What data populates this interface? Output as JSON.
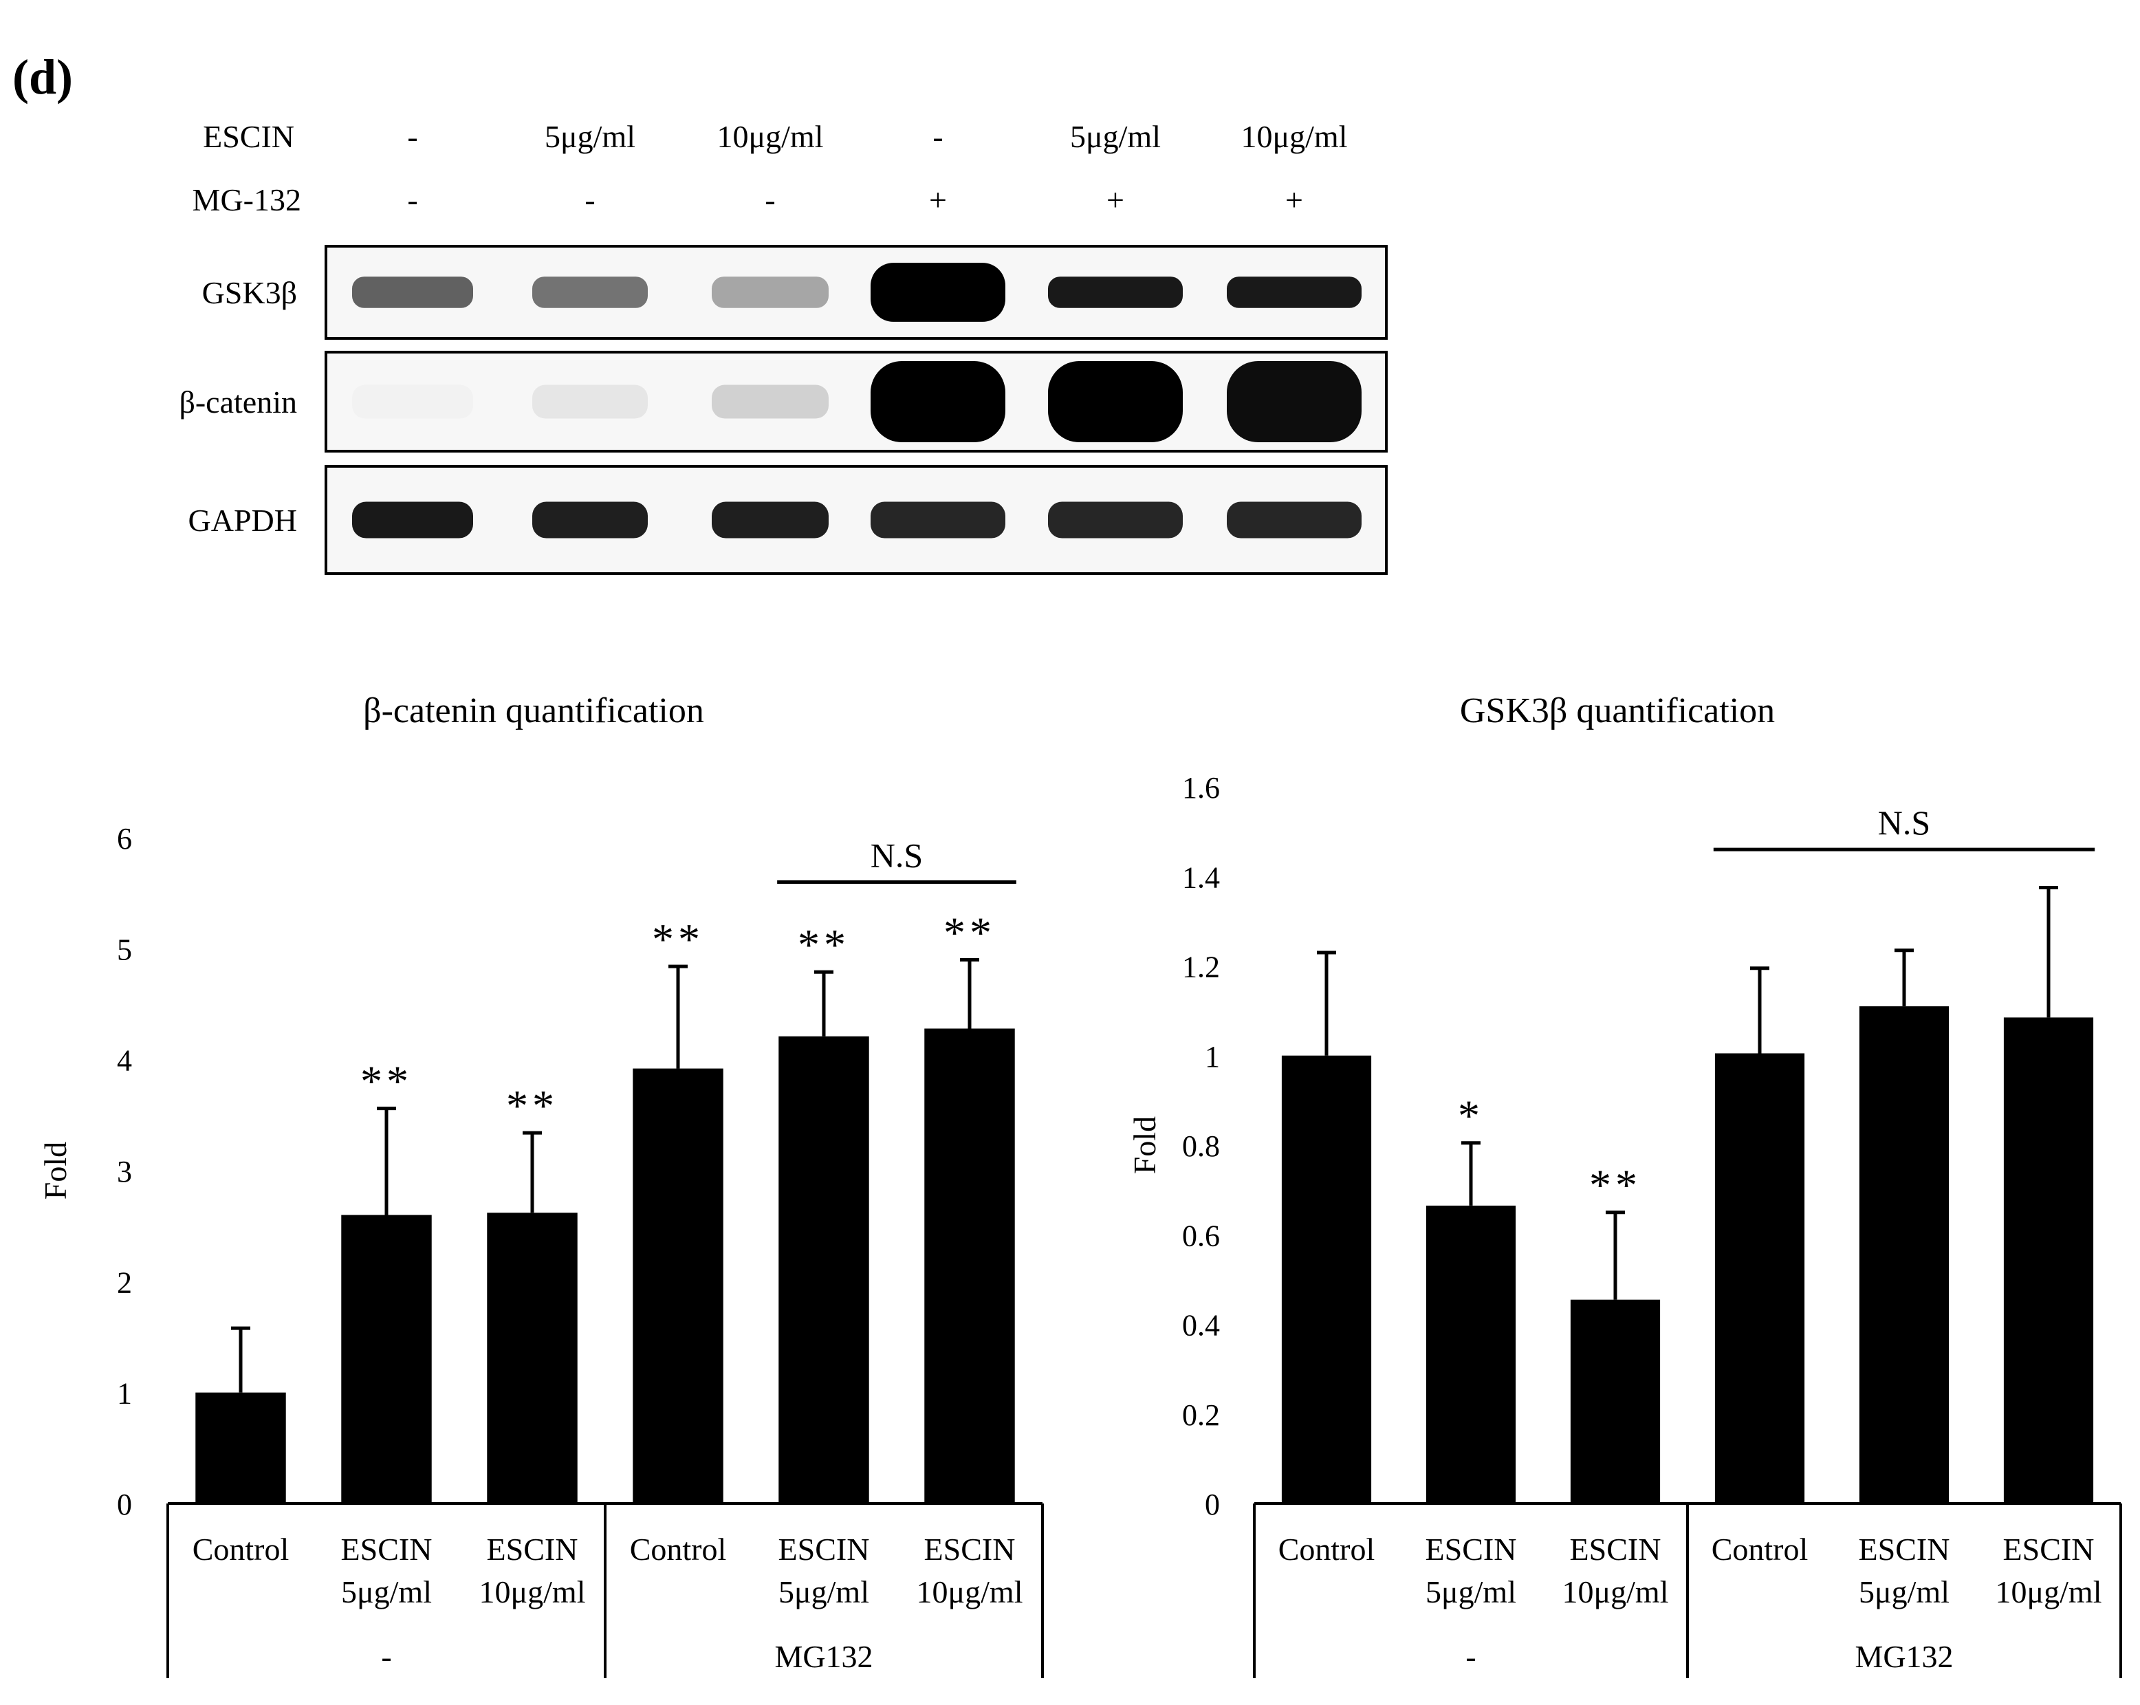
{
  "panel_label": "(d)",
  "blot": {
    "row_labels": [
      "ESCIN",
      "MG-132"
    ],
    "lanes": [
      {
        "escin": "-",
        "mg132": "-"
      },
      {
        "escin": "5μg/ml",
        "mg132": "-"
      },
      {
        "escin": "10μg/ml",
        "mg132": "-"
      },
      {
        "escin": "-",
        "mg132": "+"
      },
      {
        "escin": "5μg/ml",
        "mg132": "+"
      },
      {
        "escin": "10μg/ml",
        "mg132": "+"
      }
    ],
    "bands": [
      {
        "label": "GSK3β",
        "intensity": [
          0.62,
          0.55,
          0.35,
          1.0,
          0.9,
          0.9
        ]
      },
      {
        "label": "β-catenin",
        "intensity": [
          0.05,
          0.1,
          0.18,
          1.0,
          1.0,
          0.95
        ]
      },
      {
        "label": "GAPDH",
        "intensity": [
          0.9,
          0.88,
          0.88,
          0.85,
          0.85,
          0.85
        ]
      }
    ]
  },
  "chart_data": [
    {
      "type": "bar",
      "title": "β-catenin quantification",
      "ylabel": "Fold",
      "ylim": [
        0,
        6
      ],
      "yticks": [
        "0",
        "1",
        "2",
        "3",
        "4",
        "5",
        "6"
      ],
      "categories": [
        [
          "Control"
        ],
        [
          "ESCIN",
          "5μg/ml"
        ],
        [
          "ESCIN",
          "10μg/ml"
        ],
        [
          "Control"
        ],
        [
          "ESCIN",
          "5μg/ml"
        ],
        [
          "ESCIN",
          "10μg/ml"
        ]
      ],
      "groups": [
        {
          "label": "-",
          "span": [
            0,
            2
          ]
        },
        {
          "label": "MG132",
          "span": [
            3,
            5
          ]
        }
      ],
      "values": [
        1.0,
        2.6,
        2.62,
        3.92,
        4.21,
        4.28
      ],
      "errors": [
        0.58,
        0.96,
        0.72,
        0.92,
        0.58,
        0.62
      ],
      "significance": [
        "",
        "**",
        "**",
        "**",
        "**",
        "**"
      ],
      "ns_bracket": {
        "label": "N.S",
        "span": [
          4,
          5
        ],
        "y": 5.6
      },
      "grid": false,
      "color": "#000000"
    },
    {
      "type": "bar",
      "title": "GSK3β quantification",
      "ylabel": "Fold",
      "ylim": [
        0,
        1.6
      ],
      "yticks": [
        "0",
        "0.2",
        "0.4",
        "0.6",
        "0.8",
        "1",
        "1.2",
        "1.4",
        "1.6"
      ],
      "categories": [
        [
          "Control"
        ],
        [
          "ESCIN",
          "5μg/ml"
        ],
        [
          "ESCIN",
          "10μg/ml"
        ],
        [
          "Control"
        ],
        [
          "ESCIN",
          "5μg/ml"
        ],
        [
          "ESCIN",
          "10μg/ml"
        ]
      ],
      "groups": [
        {
          "label": "-",
          "span": [
            0,
            2
          ]
        },
        {
          "label": "MG132",
          "span": [
            3,
            5
          ]
        }
      ],
      "values": [
        1.0,
        0.665,
        0.455,
        1.005,
        1.11,
        1.085
      ],
      "errors": [
        0.23,
        0.14,
        0.195,
        0.19,
        0.125,
        0.29
      ],
      "significance": [
        "",
        "*",
        "**",
        "",
        "",
        ""
      ],
      "ns_bracket": {
        "label": "N.S",
        "span": [
          3,
          5
        ],
        "y": 1.46
      },
      "grid": false,
      "color": "#000000"
    }
  ]
}
